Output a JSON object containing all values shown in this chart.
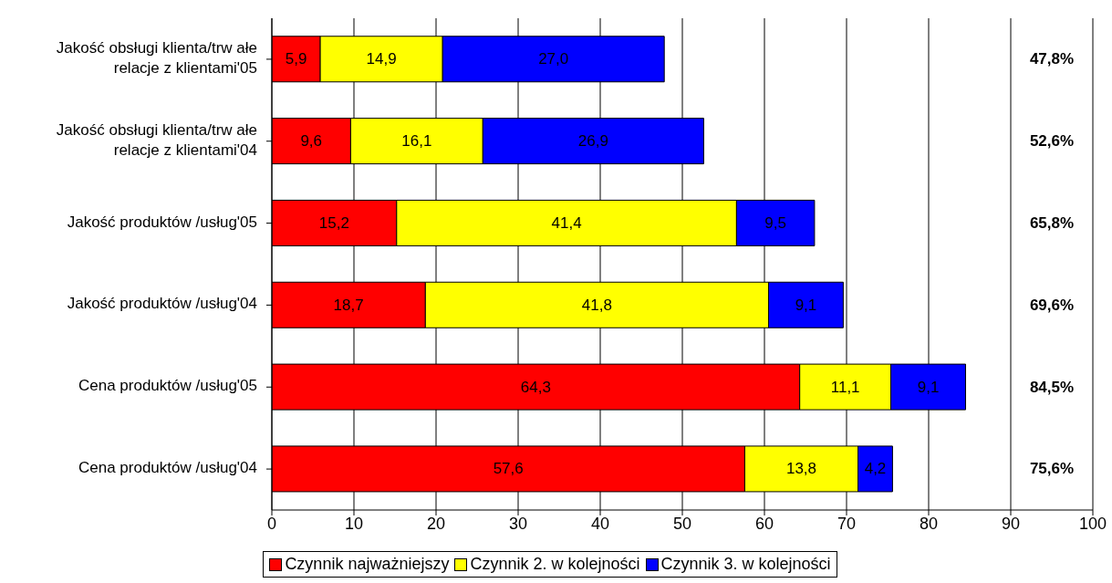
{
  "chart_data": {
    "type": "bar",
    "orientation": "horizontal",
    "stacked": true,
    "categories": [
      "Jakość obsługi klienta/trw ałe relacje z klientami'05",
      "Jakość obsługi klienta/trw ałe relacje z klientami'04",
      "Jakość produktów /usług'05",
      "Jakość produktów /usług'04",
      "Cena produktów /usług'05",
      "Cena produktów /usług'04"
    ],
    "series": [
      {
        "name": "Czynnik najważniejszy",
        "color": "#ff0000",
        "values": [
          5.9,
          9.6,
          15.2,
          18.7,
          64.3,
          57.6
        ],
        "value_labels": [
          "5,9",
          "9,6",
          "15,2",
          "18,7",
          "64,3",
          "57,6"
        ]
      },
      {
        "name": "Czynnik 2. w kolejności",
        "color": "#ffff00",
        "values": [
          14.9,
          16.1,
          41.4,
          41.8,
          11.1,
          13.8
        ],
        "value_labels": [
          "14,9",
          "16,1",
          "41,4",
          "41,8",
          "11,1",
          "13,8"
        ]
      },
      {
        "name": "Czynnik 3. w kolejności",
        "color": "#0000ff",
        "values": [
          27.0,
          26.9,
          9.5,
          9.1,
          9.1,
          4.2
        ],
        "value_labels": [
          "27,0",
          "26,9",
          "9,5",
          "9,1",
          "9,1",
          "4,2"
        ]
      }
    ],
    "annotations": [
      "47,8%",
      "52,6%",
      "65,8%",
      "69,6%",
      "84,5%",
      "75,6%"
    ],
    "xlim": [
      0,
      100
    ],
    "xticks": [
      0,
      10,
      20,
      30,
      40,
      50,
      60,
      70,
      80,
      90,
      100
    ],
    "grid": "x",
    "legend": "bottom"
  }
}
